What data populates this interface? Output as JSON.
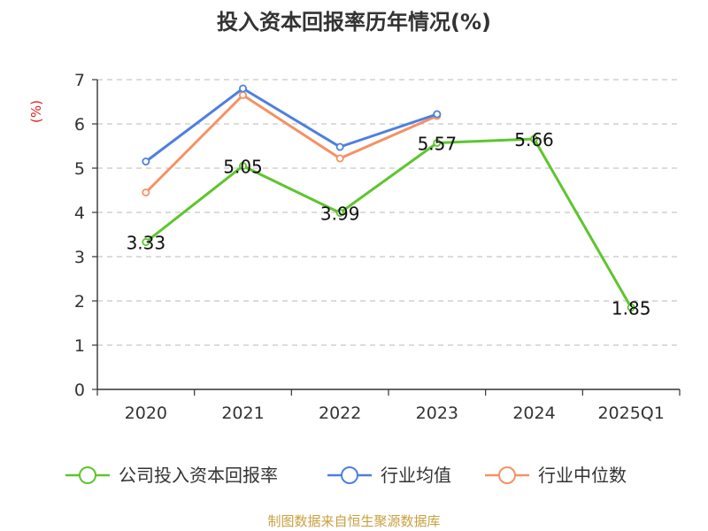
{
  "title": "投入资本回报率历年情况(%)",
  "source": "制图数据来自恒生聚源数据库",
  "chart_data": {
    "type": "line",
    "title": "投入资本回报率历年情况(%)",
    "ylabel": "(%)",
    "ylim": [
      0,
      7
    ],
    "yticks": [
      "0",
      "1",
      "2",
      "3",
      "4",
      "5",
      "6",
      "7"
    ],
    "categories": [
      "2020",
      "2021",
      "2022",
      "2023",
      "2024",
      "2025Q1"
    ],
    "grid": true,
    "legend_position": "bottom",
    "series": [
      {
        "name": "公司投入资本回报率",
        "color": "#5ec52e",
        "values": [
          3.33,
          5.05,
          3.99,
          5.57,
          5.66,
          1.85
        ],
        "labels": [
          "3.33",
          "5.05",
          "3.99",
          "5.57",
          "5.66",
          "1.85"
        ]
      },
      {
        "name": "行业均值",
        "color": "#4e7fe0",
        "values": [
          5.15,
          6.8,
          5.48,
          6.22,
          null,
          null
        ]
      },
      {
        "name": "行业中位数",
        "color": "#f59163",
        "values": [
          4.45,
          6.65,
          5.22,
          6.18,
          null,
          null
        ]
      }
    ]
  }
}
